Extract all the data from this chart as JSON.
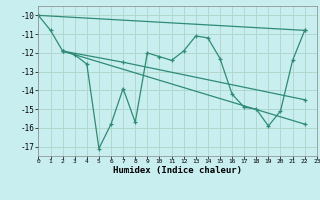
{
  "xlabel": "Humidex (Indice chaleur)",
  "background_color": "#c8eef0",
  "grid_color": "#b0d8cc",
  "line_color": "#2e8b74",
  "xlim": [
    0,
    23
  ],
  "ylim": [
    -17.5,
    -9.5
  ],
  "yticks": [
    -10,
    -11,
    -12,
    -13,
    -14,
    -15,
    -16,
    -17
  ],
  "xtick_labels": [
    "0",
    "1",
    "2",
    "3",
    "4",
    "5",
    "6",
    "7",
    "8",
    "9",
    "10",
    "11",
    "12",
    "13",
    "14",
    "15",
    "16",
    "17",
    "18",
    "19",
    "20",
    "21",
    "22",
    "23"
  ],
  "xtick_positions": [
    0,
    1,
    2,
    3,
    4,
    5,
    6,
    7,
    8,
    9,
    10,
    11,
    12,
    13,
    14,
    15,
    16,
    17,
    18,
    19,
    20,
    21,
    22,
    23
  ],
  "lines": [
    {
      "x": [
        0,
        1,
        2,
        3,
        4,
        5,
        6,
        7,
        8,
        9,
        10,
        11,
        12,
        13,
        14,
        15,
        16,
        17,
        18,
        19,
        20,
        21,
        22
      ],
      "y": [
        -10.0,
        -10.8,
        -11.9,
        -12.1,
        -12.6,
        -17.1,
        -15.8,
        -13.9,
        -15.7,
        -12.0,
        -12.2,
        -12.4,
        -11.9,
        -11.1,
        -11.2,
        -12.3,
        -14.2,
        -14.9,
        -15.0,
        -15.9,
        -15.1,
        -12.4,
        -10.8
      ]
    },
    {
      "x": [
        0,
        22
      ],
      "y": [
        -10.0,
        -10.8
      ]
    },
    {
      "x": [
        2,
        22
      ],
      "y": [
        -11.9,
        -15.8
      ]
    },
    {
      "x": [
        2,
        7,
        22
      ],
      "y": [
        -11.9,
        -12.5,
        -14.5
      ]
    }
  ]
}
